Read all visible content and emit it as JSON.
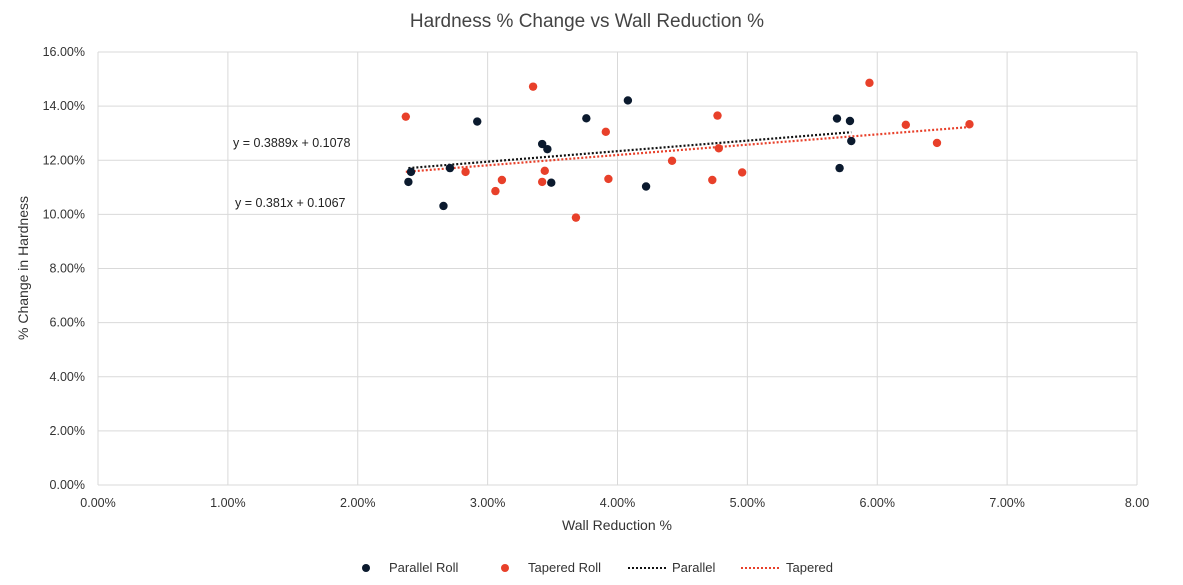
{
  "chart_data": {
    "type": "scatter",
    "title": "Hardness % Change vs Wall Reduction %",
    "xlabel": "Wall Reduction %",
    "ylabel": "% Change in Hardness",
    "xlim": [
      0,
      0.08
    ],
    "ylim": [
      0,
      0.16
    ],
    "x_ticks": [
      0,
      0.01,
      0.02,
      0.03,
      0.04,
      0.05,
      0.06,
      0.07,
      0.08
    ],
    "y_ticks": [
      0,
      0.02,
      0.04,
      0.06,
      0.08,
      0.1,
      0.12,
      0.14,
      0.16
    ],
    "x_tick_labels": [
      "0.00%",
      "1.00%",
      "2.00%",
      "3.00%",
      "4.00%",
      "5.00%",
      "6.00%",
      "7.00%",
      "8.00"
    ],
    "y_tick_labels": [
      "0.00%",
      "2.00%",
      "4.00%",
      "6.00%",
      "8.00%",
      "10.00%",
      "12.00%",
      "14.00%",
      "16.00%"
    ],
    "grid": true,
    "legend_position": "bottom",
    "series": [
      {
        "name": "Parallel Roll",
        "color": "#0b1a2e",
        "points": [
          [
            0.0239,
            0.112
          ],
          [
            0.0241,
            0.1157
          ],
          [
            0.0266,
            0.1031
          ],
          [
            0.0271,
            0.1171
          ],
          [
            0.0292,
            0.1343
          ],
          [
            0.0342,
            0.126
          ],
          [
            0.0346,
            0.1241
          ],
          [
            0.0349,
            0.1117
          ],
          [
            0.0376,
            0.1355
          ],
          [
            0.0408,
            0.1421
          ],
          [
            0.0422,
            0.1103
          ],
          [
            0.0569,
            0.1354
          ],
          [
            0.0571,
            0.1171
          ],
          [
            0.0579,
            0.1345
          ],
          [
            0.058,
            0.1271
          ]
        ]
      },
      {
        "name": "Tapered Roll",
        "color": "#e8402a",
        "points": [
          [
            0.0237,
            0.1361
          ],
          [
            0.0283,
            0.1157
          ],
          [
            0.0306,
            0.1086
          ],
          [
            0.0311,
            0.1127
          ],
          [
            0.0335,
            0.1472
          ],
          [
            0.0342,
            0.112
          ],
          [
            0.0344,
            0.1161
          ],
          [
            0.0368,
            0.0988
          ],
          [
            0.0391,
            0.1305
          ],
          [
            0.0393,
            0.1131
          ],
          [
            0.0442,
            0.1198
          ],
          [
            0.0473,
            0.1127
          ],
          [
            0.0477,
            0.1365
          ],
          [
            0.0478,
            0.1244
          ],
          [
            0.0496,
            0.1155
          ],
          [
            0.0594,
            0.1486
          ],
          [
            0.0622,
            0.1331
          ],
          [
            0.0646,
            0.1264
          ],
          [
            0.0671,
            0.1333
          ]
        ]
      }
    ],
    "trendlines": [
      {
        "name": "Parallel",
        "color": "#111111",
        "slope": 0.3889,
        "intercept": 0.1078,
        "x_range": [
          0.0239,
          0.058
        ],
        "equation": "y = 0.3889x + 0.1078"
      },
      {
        "name": "Tapered",
        "color": "#e8402a",
        "slope": 0.381,
        "intercept": 0.1067,
        "x_range": [
          0.0237,
          0.0671
        ],
        "equation": "y = 0.381x + 0.1067"
      }
    ]
  }
}
